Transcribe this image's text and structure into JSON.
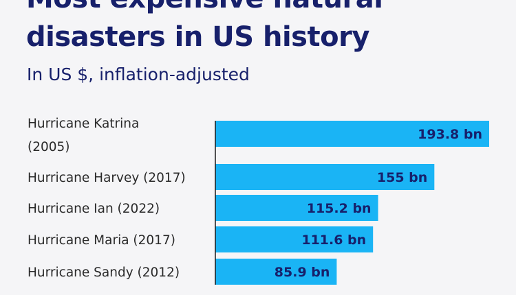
{
  "header": {
    "title": "Most expensive natural\ndisasters in US history",
    "subtitle": "In US $, inflation-adjusted"
  },
  "colors": {
    "bar": "#1ab4f5",
    "axis": "#1a1a1a",
    "title": "#17206b",
    "label": "#2a2a2a",
    "background": "#f5f5f7"
  },
  "chart_data": {
    "type": "bar",
    "orientation": "horizontal",
    "categories": [
      "Hurricane Katrina (2005)",
      "Hurricane Harvey (2017)",
      "Hurricane Ian (2022)",
      "Hurricane Maria (2017)",
      "Hurricane Sandy (2012)"
    ],
    "category_label_lines": [
      [
        "Hurricane Katrina",
        "(2005)"
      ],
      [
        "Hurricane Harvey (2017)"
      ],
      [
        "Hurricane Ian (2022)"
      ],
      [
        "Hurricane Maria (2017)"
      ],
      [
        "Hurricane Sandy (2012)"
      ]
    ],
    "values": [
      193.8,
      155,
      115.2,
      111.6,
      85.9
    ],
    "data_labels": [
      "193.8 bn",
      "155 bn",
      "115.2 bn",
      "111.6 bn",
      "85.9 bn"
    ],
    "title": "Most expensive natural disasters in US history",
    "subtitle": "In US $, inflation-adjusted",
    "xlabel": "",
    "ylabel": "",
    "xlim": [
      0,
      193.8
    ],
    "grid": false,
    "legend": "none"
  }
}
